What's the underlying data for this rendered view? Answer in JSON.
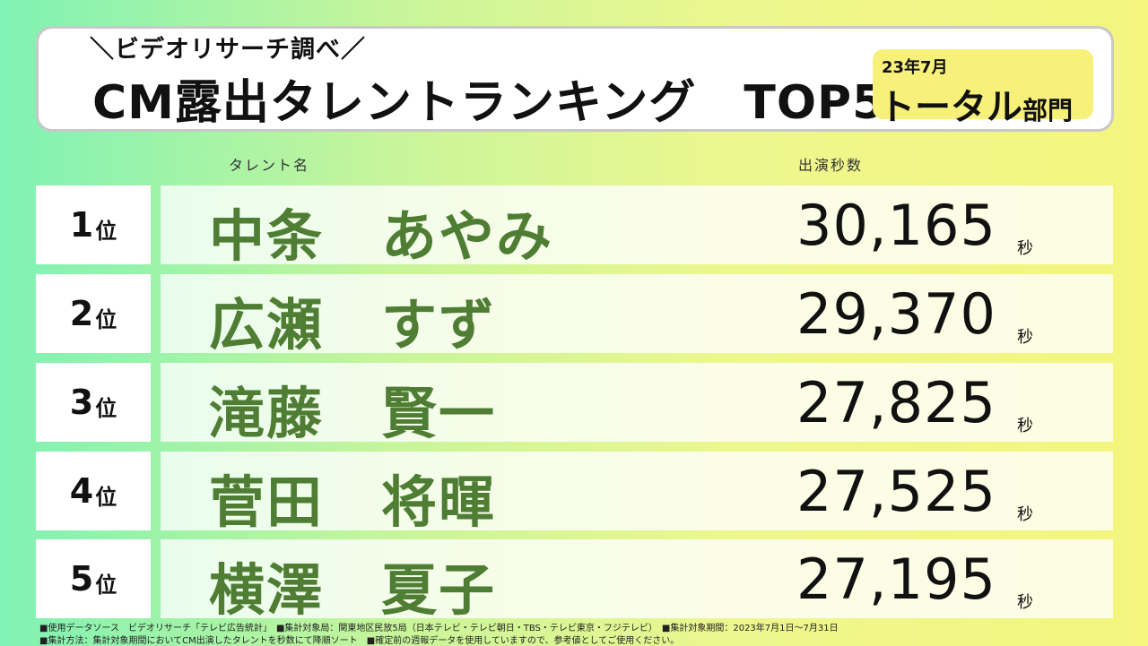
{
  "header": {
    "subtitle": "＼ビデオリサーチ調べ／",
    "title": "CM露出タレントランキング　TOP5",
    "badge_date": "23年7月",
    "badge_main": "トータル",
    "badge_suffix": "部門"
  },
  "columns": {
    "talent": "タレント名",
    "seconds": "出演秒数"
  },
  "rank_suffix": "位",
  "seconds_unit": "秒",
  "rows": [
    {
      "rank": "1",
      "name": "中条　あやみ",
      "seconds": "30,165"
    },
    {
      "rank": "2",
      "name": "広瀬　すず",
      "seconds": "29,370"
    },
    {
      "rank": "3",
      "name": "滝藤　賢一",
      "seconds": "27,825"
    },
    {
      "rank": "4",
      "name": "菅田　将暉",
      "seconds": "27,525"
    },
    {
      "rank": "5",
      "name": "横澤　夏子",
      "seconds": "27,195"
    }
  ],
  "footnotes": [
    "■使用データソース　ビデオリサーチ「テレビ広告統計」　■集計対象局：関東地区民放5局（日本テレビ・テレビ朝日・TBS・テレビ東京・フジテレビ）　■集計対象期間：2023年7月1日～7月31日",
    "■集計方法：集計対象期間においてCM出演したタレントを秒数にて降順ソート　■確定前の週報データを使用していますので、参考値としてご使用ください。"
  ]
}
